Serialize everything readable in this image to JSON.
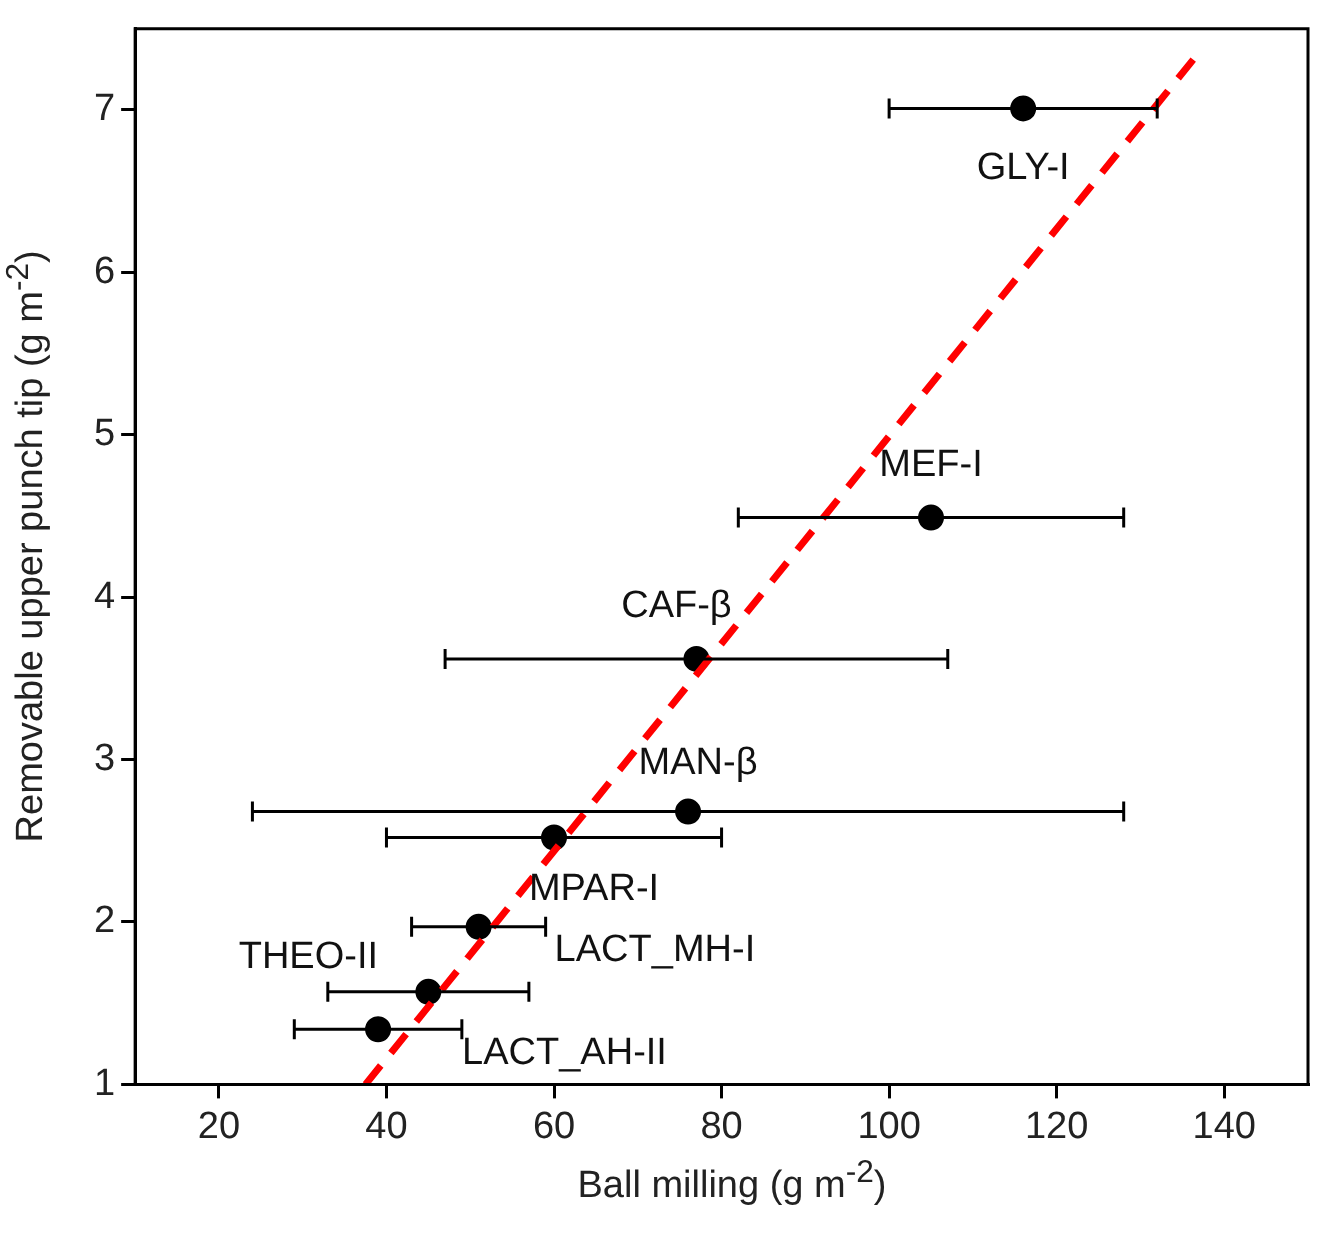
{
  "chart_data": {
    "type": "scatter",
    "xlabel": "Ball milling (g m$^{-2}$)",
    "ylabel": "Removable upper punch tip (g m$^{-2}$)",
    "xlim": [
      10,
      150
    ],
    "xticks": [
      20,
      40,
      60,
      80,
      100,
      120,
      140
    ],
    "ylim": [
      1,
      7.5
    ],
    "yticks": [
      1,
      2,
      3,
      4,
      5,
      6,
      7
    ],
    "grid": false,
    "legend": false,
    "marker": "circle",
    "series": [
      {
        "color": "#000000",
        "x": [
          116,
          105,
          77,
          76,
          60,
          51,
          45,
          39
        ],
        "values": [
          7.01,
          4.49,
          3.62,
          2.68,
          2.52,
          1.97,
          1.57,
          1.34
        ],
        "xerrors": [
          [
            100,
            132
          ],
          [
            82,
            128
          ],
          [
            47,
            107
          ],
          [
            24,
            128
          ],
          [
            40,
            80
          ],
          [
            43,
            59
          ],
          [
            33,
            57
          ],
          [
            29,
            49
          ]
        ]
      },
      {
        "type": "line",
        "color": "#ff0000",
        "line_style": "dashed",
        "marker": "none",
        "x": [
          37.5,
          136.3
        ],
        "values": [
          1,
          7.31
        ]
      }
    ],
    "annotations": [
      {
        "text": "GLY-I",
        "x": 116,
        "y": 7.01
      },
      {
        "text": "MEF-I",
        "x": 105,
        "y": 4.49
      },
      {
        "text": "CAF-β",
        "x": 77,
        "y": 3.62
      },
      {
        "text": "MAN-β",
        "x": 76,
        "y": 2.68
      },
      {
        "text": "MPAR-I",
        "x": 60,
        "y": 2.52
      },
      {
        "text": "LACT_MH-I",
        "x": 51,
        "y": 1.97
      },
      {
        "text": "THEO-II",
        "x": 45,
        "y": 1.57
      },
      {
        "text": "LACT_AH-II",
        "x": 39,
        "y": 1.34
      }
    ]
  }
}
